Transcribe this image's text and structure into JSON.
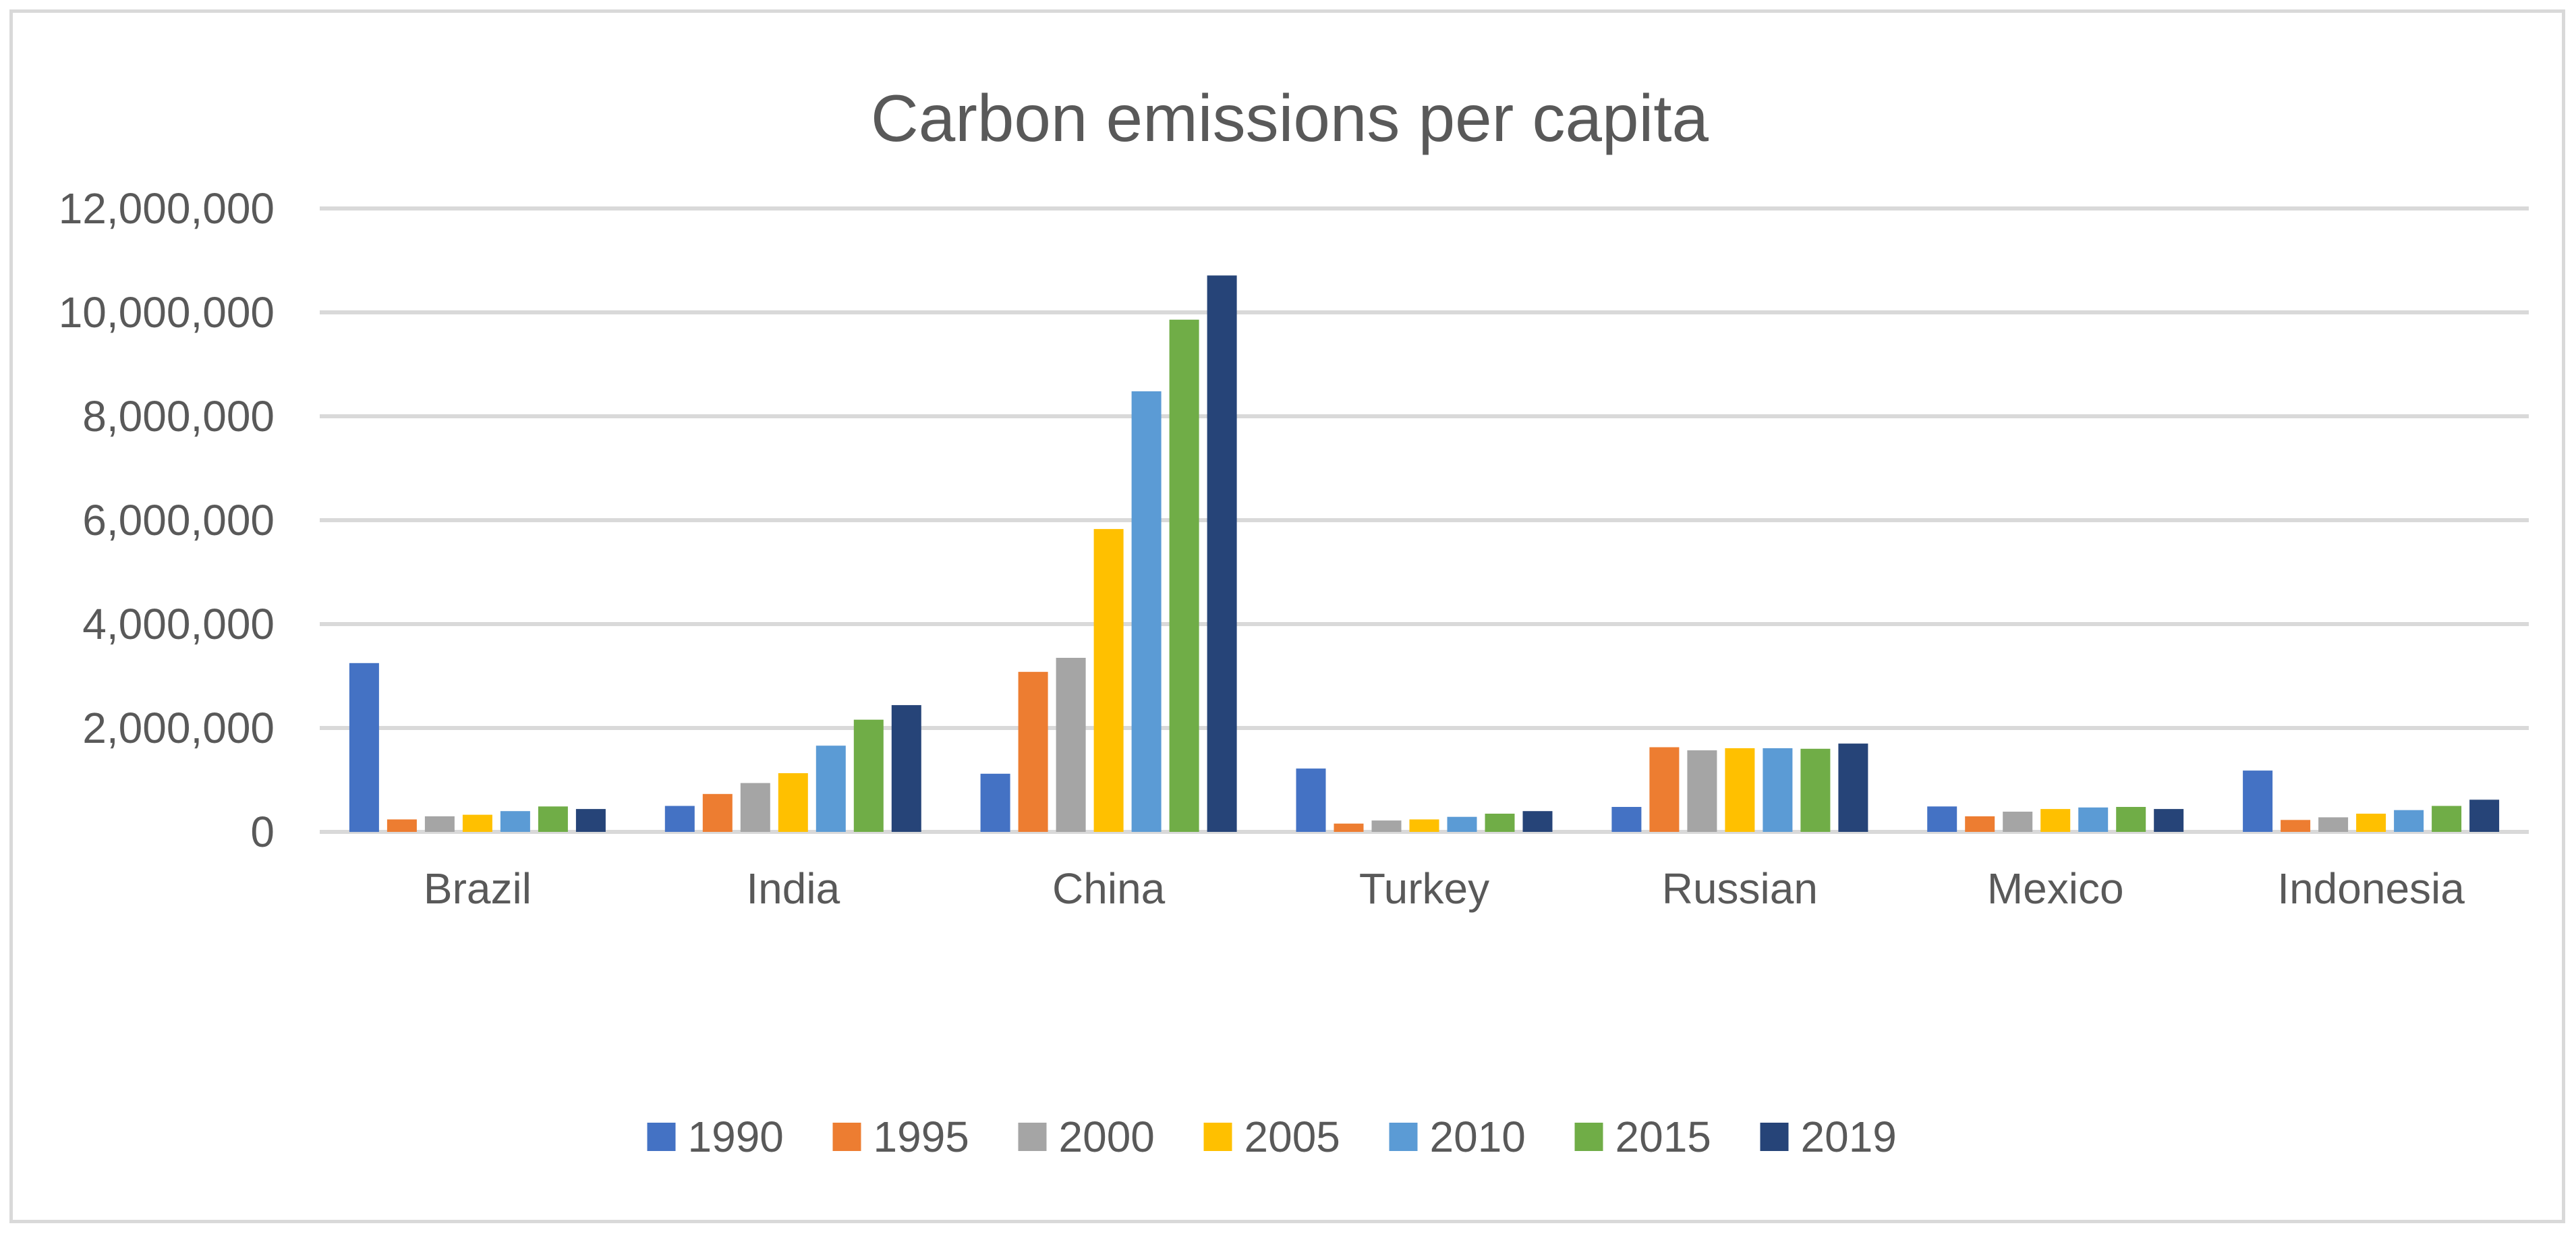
{
  "chart_data": {
    "type": "bar",
    "title": "Carbon emissions per capita",
    "xlabel": "",
    "ylabel": "",
    "ylim": [
      0,
      12000000
    ],
    "yticks": [
      0,
      2000000,
      4000000,
      6000000,
      8000000,
      10000000,
      12000000
    ],
    "ytick_labels": [
      "0",
      "2,000,000",
      "4,000,000",
      "6,000,000",
      "8,000,000",
      "10,000,000",
      "12,000,000"
    ],
    "grid": true,
    "legend_position": "bottom",
    "categories": [
      "Brazil",
      "India",
      "China",
      "Turkey",
      "Russian",
      "Mexico",
      "Indonesia"
    ],
    "series": [
      {
        "name": "1990",
        "color": "#4472c4",
        "values": [
          3250000,
          500000,
          1120000,
          1220000,
          480000,
          490000,
          1180000
        ]
      },
      {
        "name": "1995",
        "color": "#ed7d31",
        "values": [
          240000,
          730000,
          3080000,
          160000,
          1630000,
          300000,
          230000
        ]
      },
      {
        "name": "2000",
        "color": "#a5a5a5",
        "values": [
          300000,
          940000,
          3350000,
          220000,
          1570000,
          390000,
          280000
        ]
      },
      {
        "name": "2005",
        "color": "#ffc000",
        "values": [
          330000,
          1130000,
          5830000,
          240000,
          1610000,
          440000,
          350000
        ]
      },
      {
        "name": "2010",
        "color": "#5b9bd5",
        "values": [
          400000,
          1660000,
          8480000,
          290000,
          1610000,
          470000,
          420000
        ]
      },
      {
        "name": "2015",
        "color": "#70ad47",
        "values": [
          490000,
          2160000,
          9860000,
          350000,
          1600000,
          480000,
          500000
        ]
      },
      {
        "name": "2019",
        "color": "#264478",
        "values": [
          440000,
          2440000,
          10710000,
          400000,
          1700000,
          440000,
          620000
        ]
      }
    ]
  }
}
